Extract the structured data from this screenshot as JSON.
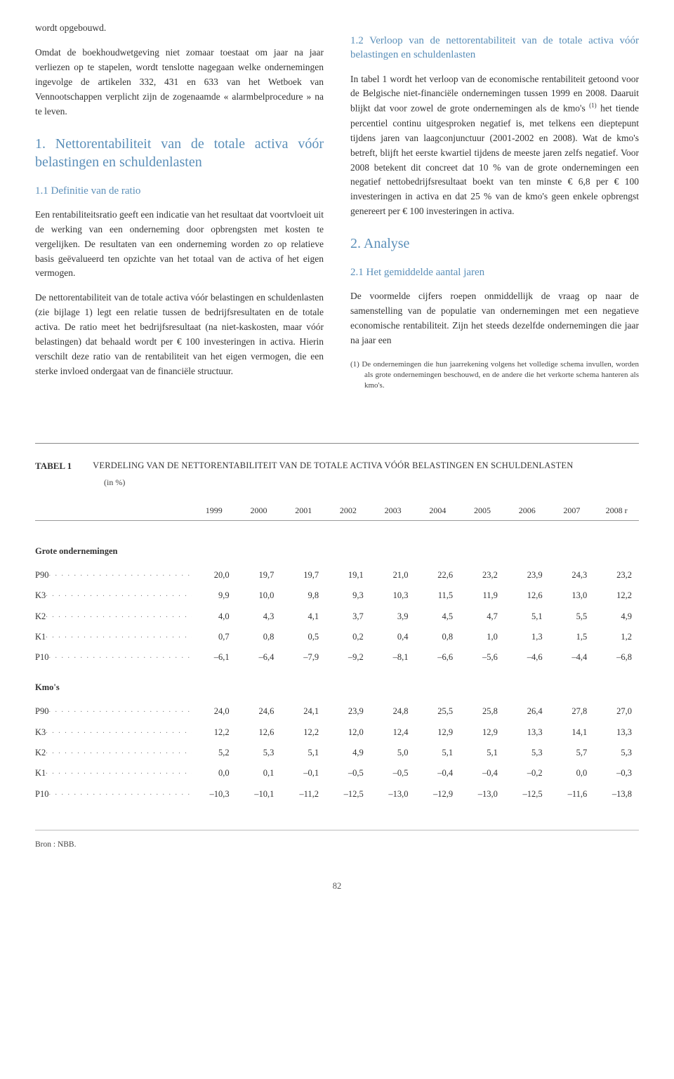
{
  "left": {
    "p1": "wordt opgebouwd.",
    "p2": "Omdat de boekhoudwetgeving niet zomaar toestaat om jaar na jaar verliezen op te stapelen, wordt tenslotte nagegaan welke ondernemingen ingevolge de artikelen 332, 431 en 633 van het Wetboek van Vennootschappen verplicht zijn de zogenaamde « alarmbelprocedure » na te leven.",
    "h1": "1. Nettorentabiliteit van de totale activa vóór belastingen en schuldenlasten",
    "h11": "1.1 Definitie van de ratio",
    "p3": "Een rentabiliteitsratio geeft een indicatie van het resultaat dat voortvloeit uit de werking van een onderneming door opbrengsten met kosten te vergelijken. De resultaten van een onderneming worden zo op relatieve basis geëvalueerd ten opzichte van het totaal van de activa of het eigen vermogen.",
    "p4": "De nettorentabiliteit van de totale activa vóór belastingen en schuldenlasten (zie bijlage 1) legt een relatie tussen de bedrijfsresultaten en de totale activa. De ratio meet het bedrijfsresultaat (na niet-kaskosten, maar vóór belastingen) dat behaald wordt per € 100 investeringen in activa. Hierin verschilt deze ratio van de rentabiliteit van het eigen vermogen, die een sterke invloed ondergaat van de financiële structuur."
  },
  "right": {
    "h12": "1.2 Verloop van de nettorentabiliteit van de totale activa vóór belastingen en schuldenlasten",
    "p1a": "In tabel 1 wordt het verloop van de economische rentabiliteit getoond voor de Belgische niet-financiële ondernemingen tussen 1999 en 2008. Daaruit blijkt dat voor zowel de grote ondernemingen als de kmo's ",
    "p1sup": "(1)",
    "p1b": " het tiende percentiel continu uitgesproken negatief is, met telkens een dieptepunt tijdens jaren van laagconjunctuur (2001-2002 en 2008). Wat de kmo's betreft, blijft het eerste kwartiel tijdens de meeste jaren zelfs negatief. Voor 2008 betekent dit concreet dat 10 % van de grote ondernemingen een negatief nettobedrijfsresultaat boekt van ten minste € 6,8 per € 100 investeringen in activa en dat 25 % van de kmo's geen enkele opbrengst genereert per € 100 investeringen in activa.",
    "h2": "2. Analyse",
    "h21": "2.1 Het gemiddelde aantal jaren",
    "p2": "De voormelde cijfers roepen onmiddellijk de vraag op naar de samenstelling van de populatie van ondernemingen met een negatieve economische rentabiliteit. Zijn het steeds dezelfde ondernemingen die jaar na jaar een",
    "fn": "(1) De ondernemingen die hun jaarrekening volgens het volledige schema invullen, worden als grote ondernemingen beschouwd, en de andere die het verkorte schema hanteren als kmo's."
  },
  "table": {
    "label": "TABEL 1",
    "caption": "VERDELING VAN DE NETTORENTABILITEIT VAN DE TOTALE ACTIVA VÓÓR BELASTINGEN EN SCHULDENLASTEN",
    "unit": "(in %)",
    "years": [
      "1999",
      "2000",
      "2001",
      "2002",
      "2003",
      "2004",
      "2005",
      "2006",
      "2007",
      "2008 r"
    ],
    "groups": [
      {
        "title": "Grote ondernemingen",
        "rows": [
          {
            "label": "P90",
            "vals": [
              "20,0",
              "19,7",
              "19,7",
              "19,1",
              "21,0",
              "22,6",
              "23,2",
              "23,9",
              "24,3",
              "23,2"
            ]
          },
          {
            "label": "K3",
            "vals": [
              "9,9",
              "10,0",
              "9,8",
              "9,3",
              "10,3",
              "11,5",
              "11,9",
              "12,6",
              "13,0",
              "12,2"
            ]
          },
          {
            "label": "K2",
            "vals": [
              "4,0",
              "4,3",
              "4,1",
              "3,7",
              "3,9",
              "4,5",
              "4,7",
              "5,1",
              "5,5",
              "4,9"
            ]
          },
          {
            "label": "K1",
            "vals": [
              "0,7",
              "0,8",
              "0,5",
              "0,2",
              "0,4",
              "0,8",
              "1,0",
              "1,3",
              "1,5",
              "1,2"
            ]
          },
          {
            "label": "P10",
            "vals": [
              "–6,1",
              "–6,4",
              "–7,9",
              "–9,2",
              "–8,1",
              "–6,6",
              "–5,6",
              "–4,6",
              "–4,4",
              "–6,8"
            ]
          }
        ]
      },
      {
        "title": "Kmo's",
        "rows": [
          {
            "label": "P90",
            "vals": [
              "24,0",
              "24,6",
              "24,1",
              "23,9",
              "24,8",
              "25,5",
              "25,8",
              "26,4",
              "27,8",
              "27,0"
            ]
          },
          {
            "label": "K3",
            "vals": [
              "12,2",
              "12,6",
              "12,2",
              "12,0",
              "12,4",
              "12,9",
              "12,9",
              "13,3",
              "14,1",
              "13,3"
            ]
          },
          {
            "label": "K2",
            "vals": [
              "5,2",
              "5,3",
              "5,1",
              "4,9",
              "5,0",
              "5,1",
              "5,1",
              "5,3",
              "5,7",
              "5,3"
            ]
          },
          {
            "label": "K1",
            "vals": [
              "0,0",
              "0,1",
              "–0,1",
              "–0,5",
              "–0,5",
              "–0,4",
              "–0,4",
              "–0,2",
              "0,0",
              "–0,3"
            ]
          },
          {
            "label": "P10",
            "vals": [
              "–10,3",
              "–10,1",
              "–11,2",
              "–12,5",
              "–13,0",
              "–12,9",
              "–13,0",
              "–12,5",
              "–11,6",
              "–13,8"
            ]
          }
        ]
      }
    ],
    "source": "Bron : NBB."
  },
  "pagenum": "82"
}
